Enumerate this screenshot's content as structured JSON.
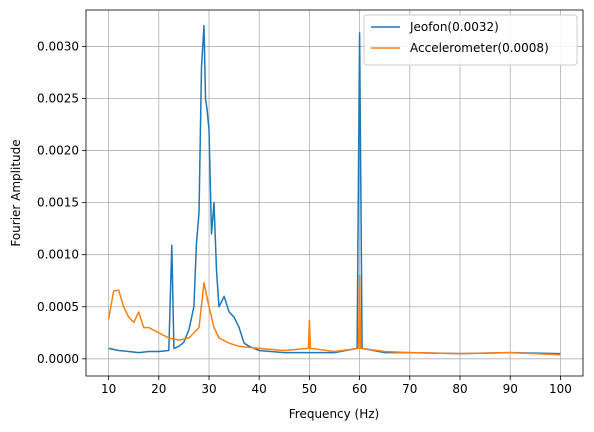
{
  "chart_data": {
    "type": "line",
    "title": "",
    "xlabel": "Frequency (Hz)",
    "ylabel": "Fourier Amplitude",
    "xlim": [
      5.5,
      104.5
    ],
    "ylim": [
      -0.000165,
      0.00335
    ],
    "xticks": [
      10,
      20,
      30,
      40,
      50,
      60,
      70,
      80,
      90,
      100
    ],
    "yticks": [
      0.0,
      0.0005,
      0.001,
      0.0015,
      0.002,
      0.0025,
      0.003
    ],
    "ytick_labels": [
      "0.0000",
      "0.0005",
      "0.0010",
      "0.0015",
      "0.0020",
      "0.0025",
      "0.0030"
    ],
    "grid": true,
    "legend_position": "upper right",
    "series": [
      {
        "name": "Jeofon(0.0032)",
        "color": "#1f77b4",
        "x": [
          10,
          12,
          14,
          16,
          18,
          20,
          22,
          22.6,
          23,
          24,
          25,
          26,
          27,
          27.5,
          28,
          28.5,
          29,
          29.3,
          29.6,
          30,
          30.5,
          31,
          31.5,
          32,
          33,
          34,
          35,
          36,
          37,
          38,
          40,
          45,
          50,
          55,
          59.5,
          60,
          60.5,
          65,
          70,
          80,
          90,
          100
        ],
        "y": [
          0.0001,
          8e-05,
          7e-05,
          6e-05,
          7e-05,
          7e-05,
          8e-05,
          0.00109,
          0.0001,
          0.00012,
          0.00016,
          0.00028,
          0.0005,
          0.0011,
          0.0014,
          0.0028,
          0.0032,
          0.0025,
          0.0024,
          0.0022,
          0.0012,
          0.0015,
          0.00085,
          0.0005,
          0.0006,
          0.00045,
          0.0004,
          0.0003,
          0.00015,
          0.00012,
          8e-05,
          6e-05,
          6e-05,
          6e-05,
          0.0001,
          0.00313,
          0.0001,
          6e-05,
          6e-05,
          5e-05,
          6e-05,
          5e-05
        ]
      },
      {
        "name": "Accelerometer(0.0008)",
        "color": "#ff7f0e",
        "x": [
          10,
          11,
          12,
          13,
          14,
          15,
          16,
          17,
          18,
          20,
          22,
          24,
          26,
          28,
          29,
          30,
          31,
          32,
          34,
          36,
          40,
          45,
          49.8,
          50,
          50.2,
          55,
          59.8,
          60,
          60.2,
          65,
          70,
          80,
          90,
          100
        ],
        "y": [
          0.00038,
          0.00065,
          0.00066,
          0.0005,
          0.0004,
          0.00035,
          0.00045,
          0.0003,
          0.0003,
          0.00025,
          0.0002,
          0.00018,
          0.0002,
          0.0003,
          0.00073,
          0.0005,
          0.0003,
          0.0002,
          0.00015,
          0.00012,
          0.0001,
          8e-05,
          0.0001,
          0.00037,
          0.0001,
          7e-05,
          0.0001,
          0.0008,
          0.0001,
          7e-05,
          6e-05,
          5e-05,
          6e-05,
          4e-05
        ]
      }
    ]
  }
}
